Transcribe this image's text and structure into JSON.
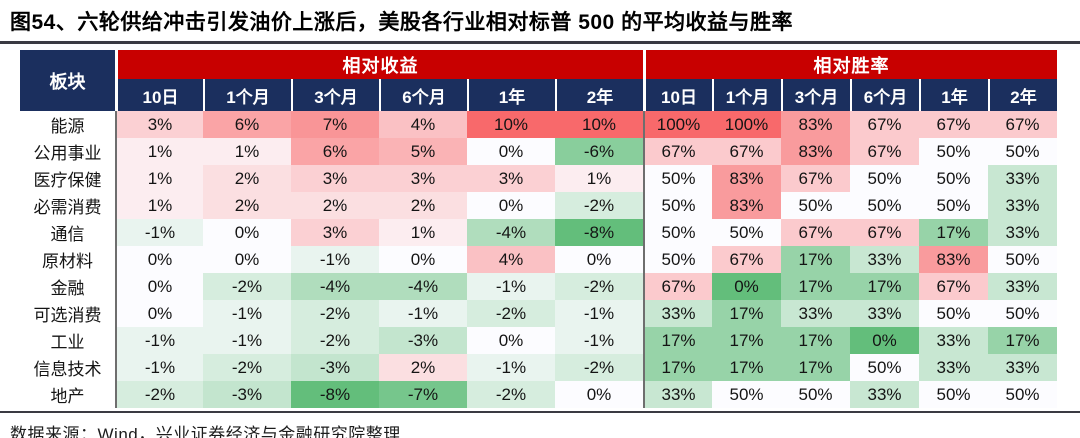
{
  "page": {
    "title": "图54、六轮供给冲击引发油价上涨后，美股各行业相对标普 500 的平均收益与胜率",
    "source_note": "数据来源：Wind，兴业证券经济与金融研究院整理"
  },
  "colors": {
    "header_red": "#c80000",
    "header_navy": "#1b2f5e",
    "divider_gray": "#6e6e6e",
    "rule_dark": "#3a3a42",
    "heat_positive": "#F8696B",
    "heat_midpoint": "#FCFCFF",
    "heat_negative": "#63BE7B"
  },
  "chart_data": {
    "type": "heatmap",
    "title": "图54、六轮供给冲击引发油价上涨后，美股各行业相对标普 500 的平均收益与胜率",
    "row_header": "板块",
    "column_groups": [
      {
        "label": "相对收益",
        "columns": [
          "10日",
          "1个月",
          "3个月",
          "6个月",
          "1年",
          "2年"
        ],
        "unit": "%"
      },
      {
        "label": "相对胜率",
        "columns": [
          "10日",
          "1个月",
          "3个月",
          "6个月",
          "1年",
          "2年"
        ],
        "unit": "%"
      }
    ],
    "rows": [
      "能源",
      "公用事业",
      "医疗保健",
      "必需消费",
      "通信",
      "原材料",
      "金融",
      "可选消费",
      "工业",
      "信息技术",
      "地产"
    ],
    "relative_return_pct": [
      [
        3,
        6,
        7,
        4,
        10,
        10
      ],
      [
        1,
        1,
        6,
        5,
        0,
        -6
      ],
      [
        1,
        2,
        3,
        3,
        3,
        1
      ],
      [
        1,
        2,
        2,
        2,
        0,
        -2
      ],
      [
        -1,
        0,
        3,
        1,
        -4,
        -8
      ],
      [
        0,
        0,
        -1,
        0,
        4,
        0
      ],
      [
        0,
        -2,
        -4,
        -4,
        -1,
        -2
      ],
      [
        0,
        -1,
        -2,
        -1,
        -2,
        -1
      ],
      [
        -1,
        -1,
        -2,
        -3,
        0,
        -1
      ],
      [
        -1,
        -2,
        -3,
        2,
        -1,
        -2
      ],
      [
        -2,
        -3,
        -8,
        -7,
        -2,
        0
      ]
    ],
    "relative_win_rate_pct": [
      [
        100,
        100,
        83,
        67,
        67,
        67
      ],
      [
        67,
        67,
        83,
        67,
        50,
        50
      ],
      [
        50,
        83,
        67,
        50,
        50,
        33
      ],
      [
        50,
        83,
        50,
        50,
        50,
        33
      ],
      [
        50,
        50,
        67,
        67,
        17,
        33
      ],
      [
        50,
        67,
        17,
        33,
        83,
        50
      ],
      [
        67,
        0,
        17,
        17,
        67,
        33
      ],
      [
        33,
        17,
        33,
        33,
        50,
        50
      ],
      [
        17,
        17,
        17,
        0,
        33,
        17
      ],
      [
        17,
        17,
        17,
        50,
        33,
        33
      ],
      [
        33,
        50,
        50,
        33,
        50,
        50
      ]
    ],
    "color_scale": {
      "return": {
        "min": -8,
        "mid": 0,
        "max": 10
      },
      "win_rate": {
        "min": 0,
        "mid": 50,
        "max": 100
      },
      "negative_color": "#63BE7B",
      "mid_color": "#FCFCFF",
      "positive_color": "#F8696B"
    }
  }
}
